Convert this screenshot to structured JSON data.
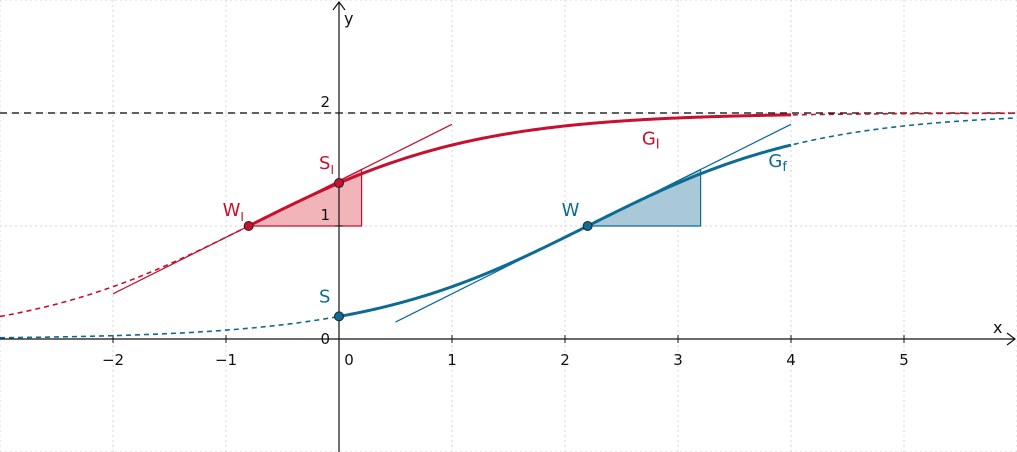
{
  "chart_data": {
    "type": "line",
    "x_axis": {
      "label": "x",
      "ticks": [
        "−2",
        "−1",
        "0",
        "1",
        "2",
        "3",
        "4",
        "5"
      ],
      "range": [
        -3,
        6
      ]
    },
    "y_axis": {
      "label": "y",
      "ticks": [
        "0",
        "1",
        "2"
      ],
      "range": [
        -0.5,
        2.5
      ]
    },
    "grid": true,
    "asymptote": {
      "y": 2,
      "style": "dashed",
      "color": "#000000"
    },
    "series": [
      {
        "name": "G",
        "subscript": "f",
        "color": "#0e6b94",
        "function": "2/(1+exp(-(x-2.2)))",
        "solid_domain": [
          0,
          4
        ],
        "dashed_domain": [
          -3,
          6
        ],
        "points": [
          {
            "name": "S",
            "subscript": "",
            "x": 0,
            "y": 0.2
          },
          {
            "name": "W",
            "subscript": "",
            "x": 2.2,
            "y": 1
          }
        ],
        "tangent": {
          "at_x": 2.2,
          "slope": 0.5,
          "from_x": 0.5,
          "to_x": 4
        },
        "slope_triangle": {
          "from_x": 2.2,
          "to_x": 3.2,
          "fill": "#a9c9d9"
        }
      },
      {
        "name": "G",
        "subscript": "I",
        "color": "#c8102e",
        "function": "2/(1+exp(-(x+0.8)))",
        "solid_domain": [
          -0.8,
          4
        ],
        "dashed_domain": [
          -3,
          6
        ],
        "points": [
          {
            "name": "S",
            "subscript": "I",
            "x": 0,
            "y": 1.38
          },
          {
            "name": "W",
            "subscript": "I",
            "x": -0.8,
            "y": 1
          }
        ],
        "tangent": {
          "at_x": -0.8,
          "slope": 0.5,
          "from_x": -2,
          "to_x": 1
        },
        "slope_triangle": {
          "from_x": -0.8,
          "to_x": 0.2,
          "fill": "#f1b4b8"
        }
      }
    ]
  }
}
